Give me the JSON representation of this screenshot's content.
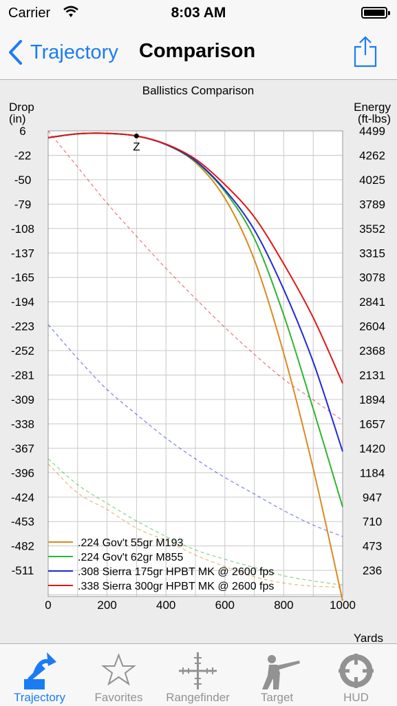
{
  "status": {
    "carrier": "Carrier",
    "time": "8:03 AM"
  },
  "nav": {
    "back_label": "Trajectory",
    "title": "Comparison"
  },
  "chart_data": {
    "type": "line",
    "title": "Ballistics Comparison",
    "ylabel_left": [
      "Drop",
      "(in)"
    ],
    "ylabel_right": [
      "Energy",
      "(ft-lbs)"
    ],
    "xlabel": "Yards",
    "xlim": [
      0,
      1000
    ],
    "x_ticks": [
      "0",
      "200",
      "400",
      "600",
      "800",
      "1000"
    ],
    "ylim_drop": [
      -540,
      6
    ],
    "ylim_energy": [
      0,
      4499
    ],
    "drop_ticks": [
      "6",
      "-22",
      "-50",
      "-79",
      "-108",
      "-137",
      "-165",
      "-194",
      "-223",
      "-252",
      "-281",
      "-309",
      "-338",
      "-367",
      "-396",
      "-424",
      "-453",
      "-482",
      "-511"
    ],
    "energy_ticks": [
      "4499",
      "4262",
      "4025",
      "3789",
      "3552",
      "3315",
      "3078",
      "2841",
      "2604",
      "2368",
      "2131",
      "1894",
      "1657",
      "1420",
      "1184",
      "947",
      "710",
      "473",
      "236"
    ],
    "zero_marker": {
      "label": "Z",
      "x": 300,
      "drop": 0
    },
    "grid": true,
    "legend_position": "bottom-left",
    "x": [
      0,
      100,
      200,
      300,
      400,
      500,
      600,
      700,
      800,
      900,
      1000
    ],
    "series": [
      {
        "name": ".224 Gov't 55gr M193",
        "color": "#d98a1c",
        "drop": [
          -2.0,
          2.5,
          3.0,
          0.0,
          -10,
          -31,
          -73,
          -145,
          -255,
          -390,
          -545
        ],
        "energy": [
          1282,
          1000,
          840,
          660,
          540,
          400,
          290,
          190,
          130,
          100,
          90
        ]
      },
      {
        "name": ".224 Gov't 62gr M855",
        "color": "#2db52d",
        "drop": [
          -2.0,
          2.5,
          3.0,
          0.0,
          -10,
          -30,
          -65,
          -120,
          -210,
          -320,
          -435
        ],
        "energy": [
          1330,
          1080,
          900,
          730,
          580,
          450,
          360,
          280,
          200,
          150,
          110
        ]
      },
      {
        "name": ".308 Sierra 175gr HPBT MK @ 2600 fps",
        "color": "#1f2ad6",
        "drop": [
          -2.0,
          2.6,
          3.1,
          0.0,
          -10,
          -29,
          -63,
          -110,
          -180,
          -265,
          -370
        ],
        "energy": [
          2627,
          2300,
          2000,
          1760,
          1530,
          1330,
          1150,
          990,
          830,
          690,
          580
        ]
      },
      {
        "name": ".338 Sierra 300gr HPBT MK @ 2600 fps",
        "color": "#e01616",
        "drop": [
          -2.0,
          2.6,
          3.1,
          0.0,
          -9.5,
          -27,
          -57,
          -95,
          -150,
          -213,
          -290
        ],
        "energy": [
          4499,
          4150,
          3800,
          3480,
          3170,
          2880,
          2600,
          2340,
          2100,
          1900,
          1700
        ]
      }
    ]
  },
  "tabs": [
    {
      "label": "Trajectory",
      "icon": "trajectory-icon",
      "active": true
    },
    {
      "label": "Favorites",
      "icon": "star-icon",
      "active": false
    },
    {
      "label": "Rangefinder",
      "icon": "crosshair-icon",
      "active": false
    },
    {
      "label": "Target",
      "icon": "rifleman-icon",
      "active": false
    },
    {
      "label": "HUD",
      "icon": "hud-icon",
      "active": false
    }
  ],
  "colors": {
    "accent": "#1a7cf5",
    "inactive": "#929292"
  }
}
